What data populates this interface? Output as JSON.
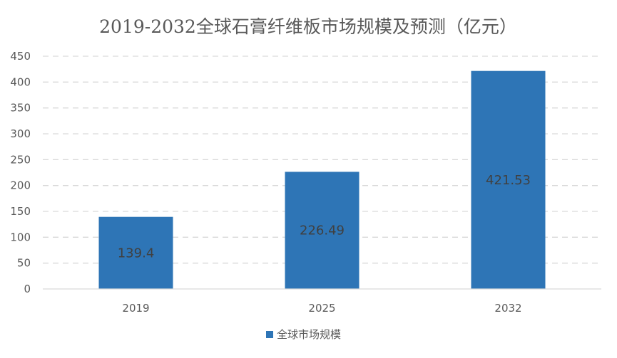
{
  "chart_data": {
    "type": "bar",
    "title": "2019-2032全球石膏纤维板市场规模及预测（亿元）",
    "categories": [
      "2019",
      "2025",
      "2032"
    ],
    "series": [
      {
        "name": "全球市场规模",
        "values": [
          139.4,
          226.49,
          421.53
        ],
        "data_labels": [
          "139.4",
          "226.49",
          "421.53"
        ],
        "color": "#2e75b6"
      }
    ],
    "y_ticks": [
      "0",
      "50",
      "100",
      "150",
      "200",
      "250",
      "300",
      "350",
      "400",
      "450"
    ],
    "ylim": [
      0,
      450
    ],
    "grid": true,
    "legend_position": "bottom"
  }
}
